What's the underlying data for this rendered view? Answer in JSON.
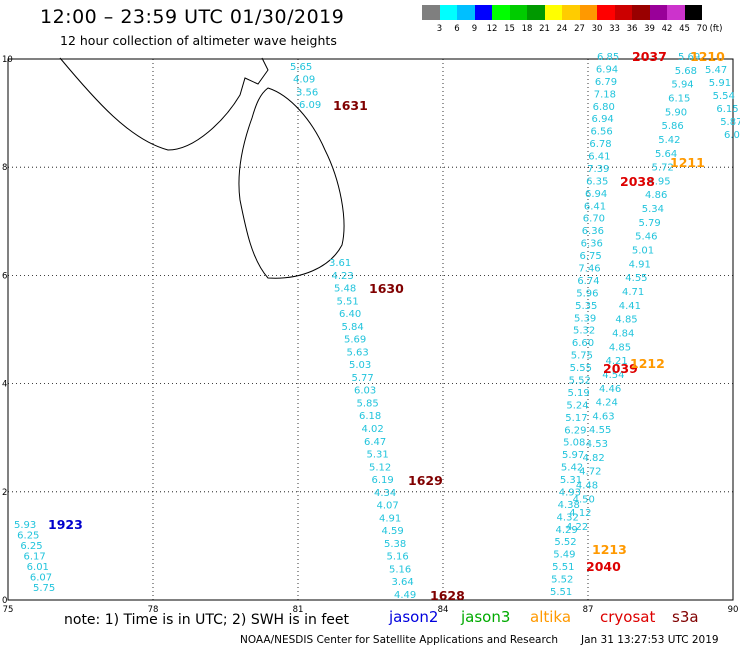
{
  "header": {
    "title": "12:00 – 23:59 UTC 01/30/2019",
    "subtitle": "12 hour collection of altimeter wave heights"
  },
  "colorbar": {
    "unit_label": "(ft)",
    "bins": [
      {
        "label": "3",
        "color": "#7f7f7f"
      },
      {
        "label": "6",
        "color": "#00ffff"
      },
      {
        "label": "9",
        "color": "#00bfff"
      },
      {
        "label": "12",
        "color": "#0000ff"
      },
      {
        "label": "15",
        "color": "#00ff00"
      },
      {
        "label": "18",
        "color": "#00cc00"
      },
      {
        "label": "21",
        "color": "#009900"
      },
      {
        "label": "24",
        "color": "#ffff00"
      },
      {
        "label": "27",
        "color": "#ffcc00"
      },
      {
        "label": "30",
        "color": "#ff9900"
      },
      {
        "label": "33",
        "color": "#ff0000"
      },
      {
        "label": "36",
        "color": "#cc0000"
      },
      {
        "label": "39",
        "color": "#990000"
      },
      {
        "label": "42",
        "color": "#990099"
      },
      {
        "label": "45",
        "color": "#cc33cc"
      },
      {
        "label": "70",
        "color": "#000000"
      }
    ]
  },
  "axes": {
    "lon_ticks": [
      "75",
      "78",
      "81",
      "84",
      "87",
      "90"
    ],
    "lat_ticks": [
      "0",
      "2",
      "4",
      "6",
      "8",
      "10"
    ]
  },
  "tracks": [
    {
      "id": "1923",
      "label_color": "#0000cc",
      "values": [
        "5.93",
        "6.25",
        "6.25",
        "6.17",
        "6.01",
        "6.07",
        "5.75"
      ]
    },
    {
      "id": "1631",
      "label_color": "#800000",
      "values": [
        "5.65",
        "4.09",
        "3.56",
        "6.09"
      ]
    },
    {
      "id": "1630",
      "label_color": "#800000",
      "values": [
        "3.61",
        "4.23",
        "5.48",
        "5.51",
        "6.40",
        "5.84",
        "5.69",
        "5.63",
        "5.03",
        "5.77",
        "6.03",
        "5.85",
        "6.18",
        "4.02",
        "6.47",
        "5.31",
        "5.12",
        "6.19",
        "4.34",
        "4.07",
        "4.91",
        "4.59",
        "5.38",
        "5.16",
        "5.16",
        "3.64",
        "4.49"
      ]
    },
    {
      "id": "1629",
      "label_color": "#800000",
      "values": []
    },
    {
      "id": "1628",
      "label_color": "#800000",
      "values": []
    },
    {
      "id": "2037",
      "label_color": "#dd0000",
      "values": [
        "6.85",
        "6.94",
        "6.79",
        "7.18",
        "6.80",
        "6.94",
        "6.56",
        "6.78",
        "6.41",
        "7.39",
        "6.35",
        "6.94",
        "6.41",
        "6.70",
        "6.36",
        "6.36",
        "6.75",
        "7.46",
        "6.74",
        "5.96",
        "5.35",
        "5.39",
        "5.32",
        "6.60",
        "5.75",
        "5.55",
        "5.52",
        "5.19",
        "5.24",
        "5.17",
        "6.29",
        "5.08",
        "5.97",
        "5.42",
        "5.31",
        "4.93",
        "4.38",
        "4.32",
        "4.29",
        "5.52",
        "5.49",
        "5.51",
        "5.52",
        "5.51"
      ]
    },
    {
      "id": "2038",
      "label_color": "#dd0000",
      "values": [
        "5.69",
        "5.68",
        "5.94",
        "6.15",
        "5.90",
        "5.86",
        "5.42",
        "5.64",
        "5.72",
        "4.95",
        "4.86",
        "5.34",
        "5.79",
        "5.46",
        "5.01",
        "4.91",
        "4.55",
        "4.71",
        "4.41",
        "4.85",
        "4.84",
        "4.85",
        "4.21",
        "4.54",
        "4.46",
        "4.24",
        "4.63",
        "4.55",
        "4.53",
        "4.82",
        "4.72",
        "4.48",
        "4.50",
        "4.12",
        "4.22"
      ]
    },
    {
      "id": "2039",
      "label_color": "#dd0000",
      "values": []
    },
    {
      "id": "2040",
      "label_color": "#dd0000",
      "values": []
    },
    {
      "id": "1210",
      "label_color": "#ff9900",
      "values": [
        "5.47",
        "5.91",
        "5.54",
        "6.15",
        "5.87",
        "6.0"
      ]
    },
    {
      "id": "1211",
      "label_color": "#ff9900",
      "values": []
    },
    {
      "id": "1212",
      "label_color": "#ff9900",
      "values": []
    },
    {
      "id": "1213",
      "label_color": "#ff9900",
      "values": []
    }
  ],
  "footer": {
    "note": "note: 1) Time is in UTC; 2) SWH is in feet",
    "missions": [
      {
        "name": "jason2",
        "color": "#0000dd"
      },
      {
        "name": "jason3",
        "color": "#00aa00"
      },
      {
        "name": "altika",
        "color": "#ff9900"
      },
      {
        "name": "cryosat",
        "color": "#dd0000"
      },
      {
        "name": "s3a",
        "color": "#800000"
      }
    ],
    "credit": "NOAA/NESDIS Center for Satellite Applications and Research",
    "timestamp": "Jan 31 13:27:53 UTC 2019"
  }
}
